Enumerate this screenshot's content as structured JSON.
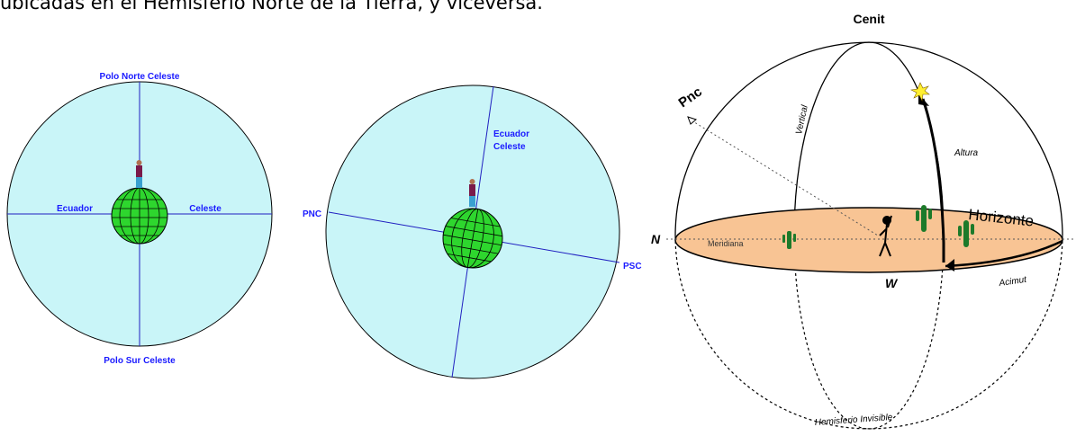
{
  "caption": "ubicadas en el Hemisferio Norte de la Tierra, y viceversa.",
  "diagram_1": {
    "north_pole": "Polo Norte Celeste",
    "equator_left": "Ecuador",
    "equator_right": "Celeste",
    "south_pole": "Polo Sur Celeste"
  },
  "diagram_2": {
    "equator_line_1": "Ecuador",
    "equator_line_2": "Celeste",
    "north_pole": "PNC",
    "south_pole": "PSC"
  },
  "diagram_3": {
    "zenith": "Cenit",
    "pole": "Pnc",
    "vertical": "Vertical",
    "altitude": "Altura",
    "horizon": "Horizonte",
    "north": "N",
    "meridian": "Meridiana",
    "west": "W",
    "azimuth": "Acimut",
    "hidden_hemisphere": "Hemisferio Invisible"
  }
}
